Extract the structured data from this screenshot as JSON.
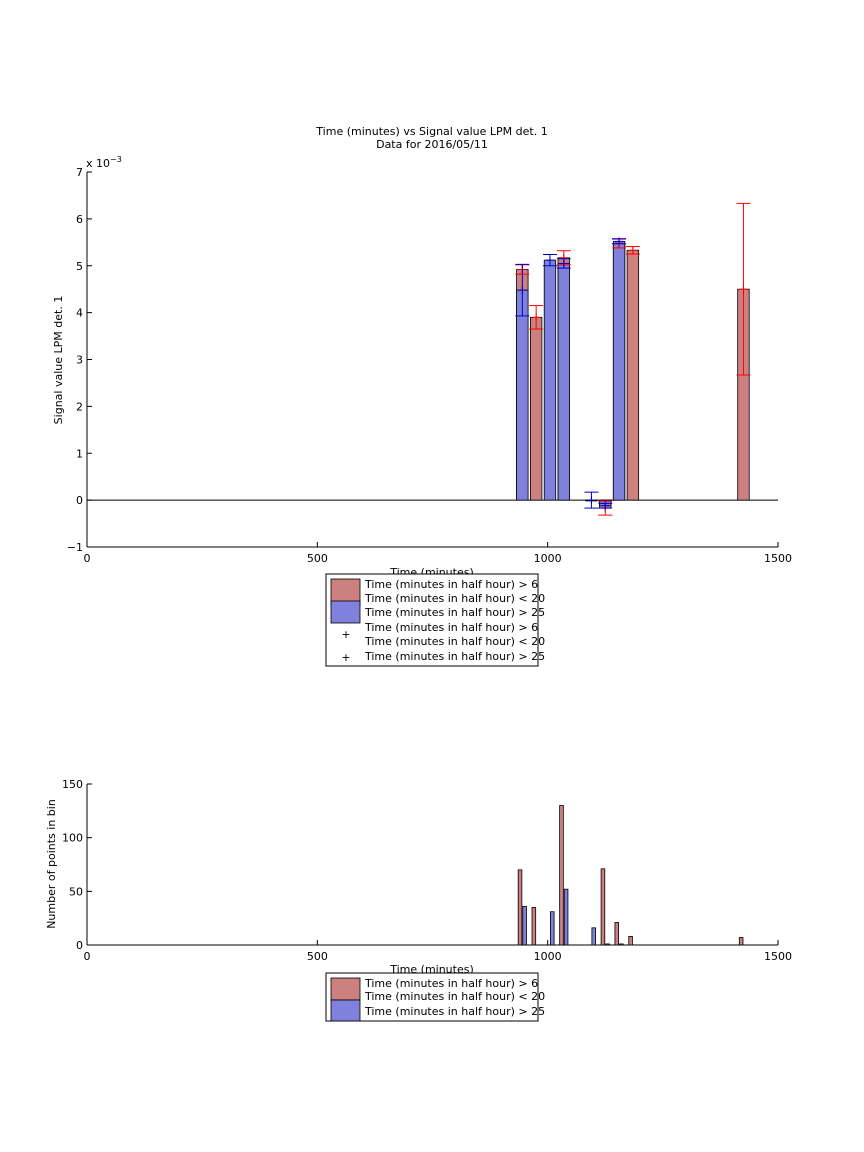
{
  "colors": {
    "red_face": "#cc8080",
    "red_edge": "#ff0000",
    "blue_face": "#8080dd",
    "blue_edge": "#0000cc",
    "errorbar_red": "#ff0000",
    "errorbar_blue": "#0000cc"
  },
  "legend_labels": {
    "red_bar": [
      "Time (minutes in half hour) > 6",
      "Time (minutes in half hour) < 20"
    ],
    "blue_bar": [
      "Time (minutes in half hour) > 25"
    ],
    "red_marker": [
      "Time (minutes in half hour) > 6",
      "Time (minutes in half hour) < 20"
    ],
    "blue_marker": [
      "Time (minutes in half hour) > 25"
    ],
    "red_marker_symbol": "+",
    "blue_marker_symbol": "+"
  },
  "chart_data": [
    {
      "type": "bar",
      "title": "Time (minutes) vs Signal value LPM det. 1",
      "subtitle": "Data for 2016/05/11",
      "xlabel": "Time (minutes)",
      "ylabel": "Signal value LPM det. 1",
      "y_exponent_label": "x 10",
      "y_exponent": "−3",
      "xlim": [
        0,
        1500
      ],
      "ylim": [
        -1,
        7
      ],
      "xticks": [
        "0",
        "500",
        "1000",
        "1500"
      ],
      "yticks": [
        "−1",
        "0",
        "1",
        "2",
        "3",
        "4",
        "5",
        "6",
        "7"
      ],
      "grid": false,
      "legend_placement": "below",
      "bar_width": 25,
      "series": [
        {
          "name": "Time (minutes in half hour) > 6 Time (minutes in half hour) < 20",
          "color_key": "red",
          "x": [
            945,
            975,
            1035,
            1125,
            1155,
            1185,
            1425
          ],
          "values": [
            4.92,
            3.9,
            5.17,
            -0.17,
            5.48,
            5.33,
            4.5
          ],
          "err": [
            0.1,
            0.25,
            0.15,
            0.15,
            0.1,
            0.08,
            1.83
          ]
        },
        {
          "name": "Time (minutes in half hour) > 25",
          "color_key": "blue",
          "x": [
            945,
            1005,
            1035,
            1095,
            1125,
            1155
          ],
          "values": [
            4.48,
            5.12,
            5.05,
            0.0,
            -0.12,
            5.52
          ],
          "err": [
            0.55,
            0.12,
            0.1,
            0.17,
            0.05,
            0.05
          ]
        }
      ]
    },
    {
      "type": "bar",
      "title": "",
      "xlabel": "Time (minutes)",
      "ylabel": "Number of points in bin",
      "xlim": [
        0,
        1500
      ],
      "ylim": [
        0,
        150
      ],
      "xticks": [
        "0",
        "500",
        "1000",
        "1500"
      ],
      "yticks": [
        "0",
        "50",
        "100",
        "150"
      ],
      "grid": false,
      "legend_placement": "below",
      "bar_width": 8,
      "series": [
        {
          "name": "Time (minutes in half hour) > 6 Time (minutes in half hour) < 20",
          "color_key": "red",
          "x": [
            940,
            970,
            1030,
            1120,
            1150,
            1180,
            1420
          ],
          "values": [
            70,
            35,
            130,
            71,
            21,
            8,
            7
          ]
        },
        {
          "name": "Time (minutes in half hour) > 25",
          "color_key": "blue",
          "x": [
            950,
            1010,
            1040,
            1100,
            1130,
            1160
          ],
          "values": [
            36,
            31,
            52,
            16,
            1,
            1
          ]
        }
      ]
    }
  ]
}
